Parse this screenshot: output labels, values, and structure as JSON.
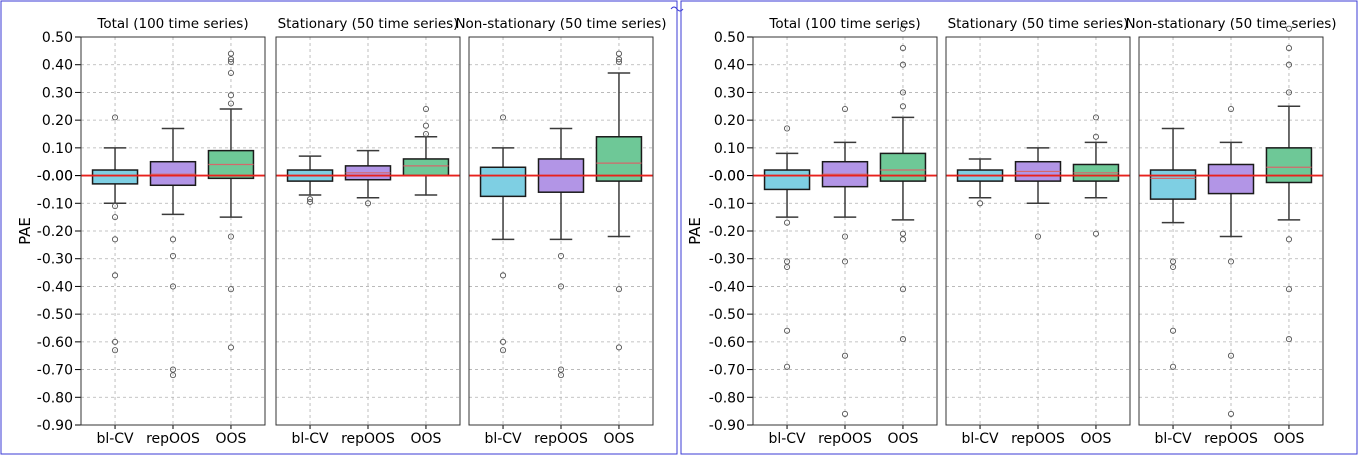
{
  "chart_data": [
    {
      "type": "boxplot",
      "ylabel": "PAE",
      "ylim": [
        -0.9,
        0.5
      ],
      "yticks": [
        "0.50",
        "0.40",
        "0.30",
        "0.20",
        "0.10",
        "0.00",
        "-0.00",
        "-0.10",
        "-0.20",
        "-0.30",
        "-0.40",
        "-0.50",
        "-0.60",
        "-0.70",
        "-0.80",
        "-0.90"
      ],
      "ytick_values": [
        0.5,
        0.4,
        0.3,
        0.2,
        0.1,
        0.0,
        -0.0,
        -0.1,
        -0.2,
        -0.3,
        -0.4,
        -0.5,
        -0.6,
        -0.7,
        -0.8,
        -0.9
      ],
      "reference_line": 0.0,
      "grid": true,
      "categories": [
        "bl-CV",
        "repOOS",
        "OOS"
      ],
      "colors": {
        "bl-CV": "#7ecfe3",
        "repOOS": "#b295e6",
        "OOS": "#6ec897",
        "median": "#d4686b",
        "reference": "#e8211c"
      },
      "panels": [
        {
          "title": "Total (100 time series)",
          "boxes": [
            {
              "name": "bl-CV",
              "whislo": -0.1,
              "q1": -0.03,
              "med": 0.0,
              "q3": 0.02,
              "whishi": 0.1,
              "fliers": [
                0.21,
                -0.11,
                -0.15,
                -0.23,
                -0.36,
                -0.6,
                -0.63
              ]
            },
            {
              "name": "repOOS",
              "whislo": -0.14,
              "q1": -0.035,
              "med": 0.005,
              "q3": 0.05,
              "whishi": 0.17,
              "fliers": [
                -0.23,
                -0.29,
                -0.4,
                -0.7,
                -0.72
              ]
            },
            {
              "name": "OOS",
              "whislo": -0.15,
              "q1": -0.01,
              "med": 0.04,
              "q3": 0.09,
              "whishi": 0.24,
              "fliers": [
                0.44,
                0.42,
                0.41,
                0.37,
                0.29,
                0.26,
                -0.22,
                -0.41,
                -0.62
              ]
            }
          ]
        },
        {
          "title": "Stationary (50 time series)",
          "boxes": [
            {
              "name": "bl-CV",
              "whislo": -0.07,
              "q1": -0.02,
              "med": 0.0,
              "q3": 0.02,
              "whishi": 0.07,
              "fliers": [
                -0.085,
                -0.095
              ]
            },
            {
              "name": "repOOS",
              "whislo": -0.08,
              "q1": -0.015,
              "med": 0.01,
              "q3": 0.035,
              "whishi": 0.09,
              "fliers": [
                -0.1
              ]
            },
            {
              "name": "OOS",
              "whislo": -0.07,
              "q1": 0.0,
              "med": 0.035,
              "q3": 0.06,
              "whishi": 0.14,
              "fliers": [
                0.24,
                0.18,
                0.15
              ]
            }
          ]
        },
        {
          "title": "Non-stationary (50 time series)",
          "boxes": [
            {
              "name": "bl-CV",
              "whislo": -0.23,
              "q1": -0.075,
              "med": 0.0,
              "q3": 0.03,
              "whishi": 0.1,
              "fliers": [
                0.21,
                -0.36,
                -0.6,
                -0.63
              ]
            },
            {
              "name": "repOOS",
              "whislo": -0.23,
              "q1": -0.06,
              "med": 0.0,
              "q3": 0.06,
              "whishi": 0.17,
              "fliers": [
                -0.29,
                -0.4,
                -0.7,
                -0.72
              ]
            },
            {
              "name": "OOS",
              "whislo": -0.22,
              "q1": -0.02,
              "med": 0.045,
              "q3": 0.14,
              "whishi": 0.37,
              "fliers": [
                0.44,
                0.42,
                0.41,
                -0.41,
                -0.62
              ]
            }
          ]
        }
      ]
    },
    {
      "type": "boxplot",
      "ylabel": "PAE",
      "ylim": [
        -0.9,
        0.5
      ],
      "yticks": [
        "0.50",
        "0.40",
        "0.30",
        "0.20",
        "0.10",
        "0.00",
        "-0.00",
        "-0.10",
        "-0.20",
        "-0.30",
        "-0.40",
        "-0.50",
        "-0.60",
        "-0.70",
        "-0.80",
        "-0.90"
      ],
      "ytick_values": [
        0.5,
        0.4,
        0.3,
        0.2,
        0.1,
        0.0,
        -0.0,
        -0.1,
        -0.2,
        -0.3,
        -0.4,
        -0.5,
        -0.6,
        -0.7,
        -0.8,
        -0.9
      ],
      "reference_line": 0.0,
      "grid": true,
      "categories": [
        "bl-CV",
        "repOOS",
        "OOS"
      ],
      "colors": {
        "bl-CV": "#7ecfe3",
        "repOOS": "#b295e6",
        "OOS": "#6ec897",
        "median": "#d4686b",
        "reference": "#e8211c"
      },
      "panels": [
        {
          "title": "Total (100 time series)",
          "boxes": [
            {
              "name": "bl-CV",
              "whislo": -0.15,
              "q1": -0.05,
              "med": 0.0,
              "q3": 0.02,
              "whishi": 0.08,
              "fliers": [
                0.17,
                -0.17,
                -0.31,
                -0.33,
                -0.56,
                -0.69
              ]
            },
            {
              "name": "repOOS",
              "whislo": -0.15,
              "q1": -0.04,
              "med": 0.005,
              "q3": 0.05,
              "whishi": 0.12,
              "fliers": [
                0.24,
                -0.22,
                -0.31,
                -0.65,
                -0.86
              ]
            },
            {
              "name": "OOS",
              "whislo": -0.16,
              "q1": -0.02,
              "med": 0.02,
              "q3": 0.08,
              "whishi": 0.21,
              "fliers": [
                0.53,
                0.46,
                0.4,
                0.3,
                0.25,
                -0.21,
                -0.23,
                -0.41,
                -0.59
              ]
            }
          ]
        },
        {
          "title": "Stationary (50 time series)",
          "boxes": [
            {
              "name": "bl-CV",
              "whislo": -0.08,
              "q1": -0.02,
              "med": 0.0,
              "q3": 0.02,
              "whishi": 0.06,
              "fliers": [
                -0.1
              ]
            },
            {
              "name": "repOOS",
              "whislo": -0.1,
              "q1": -0.02,
              "med": 0.015,
              "q3": 0.05,
              "whishi": 0.1,
              "fliers": [
                -0.22
              ]
            },
            {
              "name": "OOS",
              "whislo": -0.08,
              "q1": -0.02,
              "med": 0.01,
              "q3": 0.04,
              "whishi": 0.12,
              "fliers": [
                0.21,
                0.14,
                -0.21
              ]
            }
          ]
        },
        {
          "title": "Non-stationary (50 time series)",
          "boxes": [
            {
              "name": "bl-CV",
              "whislo": -0.17,
              "q1": -0.085,
              "med": -0.01,
              "q3": 0.02,
              "whishi": 0.17,
              "fliers": [
                -0.31,
                -0.33,
                -0.56,
                -0.69
              ]
            },
            {
              "name": "repOOS",
              "whislo": -0.22,
              "q1": -0.065,
              "med": 0.0,
              "q3": 0.04,
              "whishi": 0.12,
              "fliers": [
                0.24,
                -0.31,
                -0.65,
                -0.86
              ]
            },
            {
              "name": "OOS",
              "whislo": -0.16,
              "q1": -0.025,
              "med": 0.03,
              "q3": 0.1,
              "whishi": 0.25,
              "fliers": [
                0.53,
                0.46,
                0.4,
                0.3,
                -0.23,
                -0.41,
                -0.59
              ]
            }
          ]
        }
      ]
    }
  ]
}
